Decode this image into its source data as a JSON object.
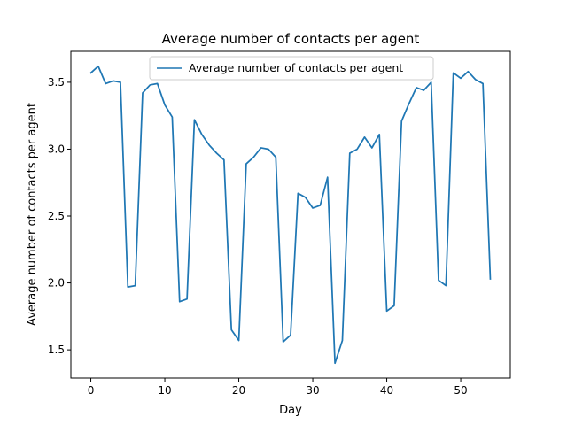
{
  "chart_data": {
    "type": "line",
    "title": "Average number of contacts per agent",
    "xlabel": "Day",
    "ylabel": "Average number of contacts per agent",
    "xlim": [
      -2.7,
      56.7
    ],
    "ylim": [
      1.289,
      3.731
    ],
    "xticks": [
      0,
      10,
      20,
      30,
      40,
      50
    ],
    "xtick_labels": [
      "0",
      "10",
      "20",
      "30",
      "40",
      "50"
    ],
    "yticks": [
      1.5,
      2.0,
      2.5,
      3.0,
      3.5
    ],
    "ytick_labels": [
      "1.5",
      "2.0",
      "2.5",
      "3.0",
      "3.5"
    ],
    "grid": false,
    "legend_position": "top-center",
    "series": [
      {
        "name": "Average number of contacts per agent",
        "color": "#1f77b4",
        "x": [
          0,
          1,
          2,
          3,
          4,
          5,
          6,
          7,
          8,
          9,
          10,
          11,
          12,
          13,
          14,
          15,
          16,
          17,
          18,
          19,
          20,
          21,
          22,
          23,
          24,
          25,
          26,
          27,
          28,
          29,
          30,
          31,
          32,
          33,
          34,
          35,
          36,
          37,
          38,
          39,
          40,
          41,
          42,
          43,
          44,
          45,
          46,
          47,
          48,
          49,
          50,
          51,
          52,
          53,
          54
        ],
        "values": [
          3.57,
          3.62,
          3.49,
          3.51,
          3.5,
          1.97,
          1.98,
          3.42,
          3.48,
          3.49,
          3.33,
          3.24,
          1.86,
          1.88,
          3.22,
          3.11,
          3.03,
          2.97,
          2.92,
          1.65,
          1.57,
          2.89,
          2.94,
          3.01,
          3.0,
          2.94,
          1.56,
          1.61,
          2.67,
          2.64,
          2.56,
          2.58,
          2.79,
          1.4,
          1.57,
          2.97,
          3.0,
          3.09,
          3.01,
          3.11,
          1.79,
          1.83,
          3.21,
          3.34,
          3.46,
          3.44,
          3.5,
          2.02,
          1.98,
          3.57,
          3.53,
          3.58,
          3.52,
          3.49,
          2.03
        ]
      }
    ]
  }
}
